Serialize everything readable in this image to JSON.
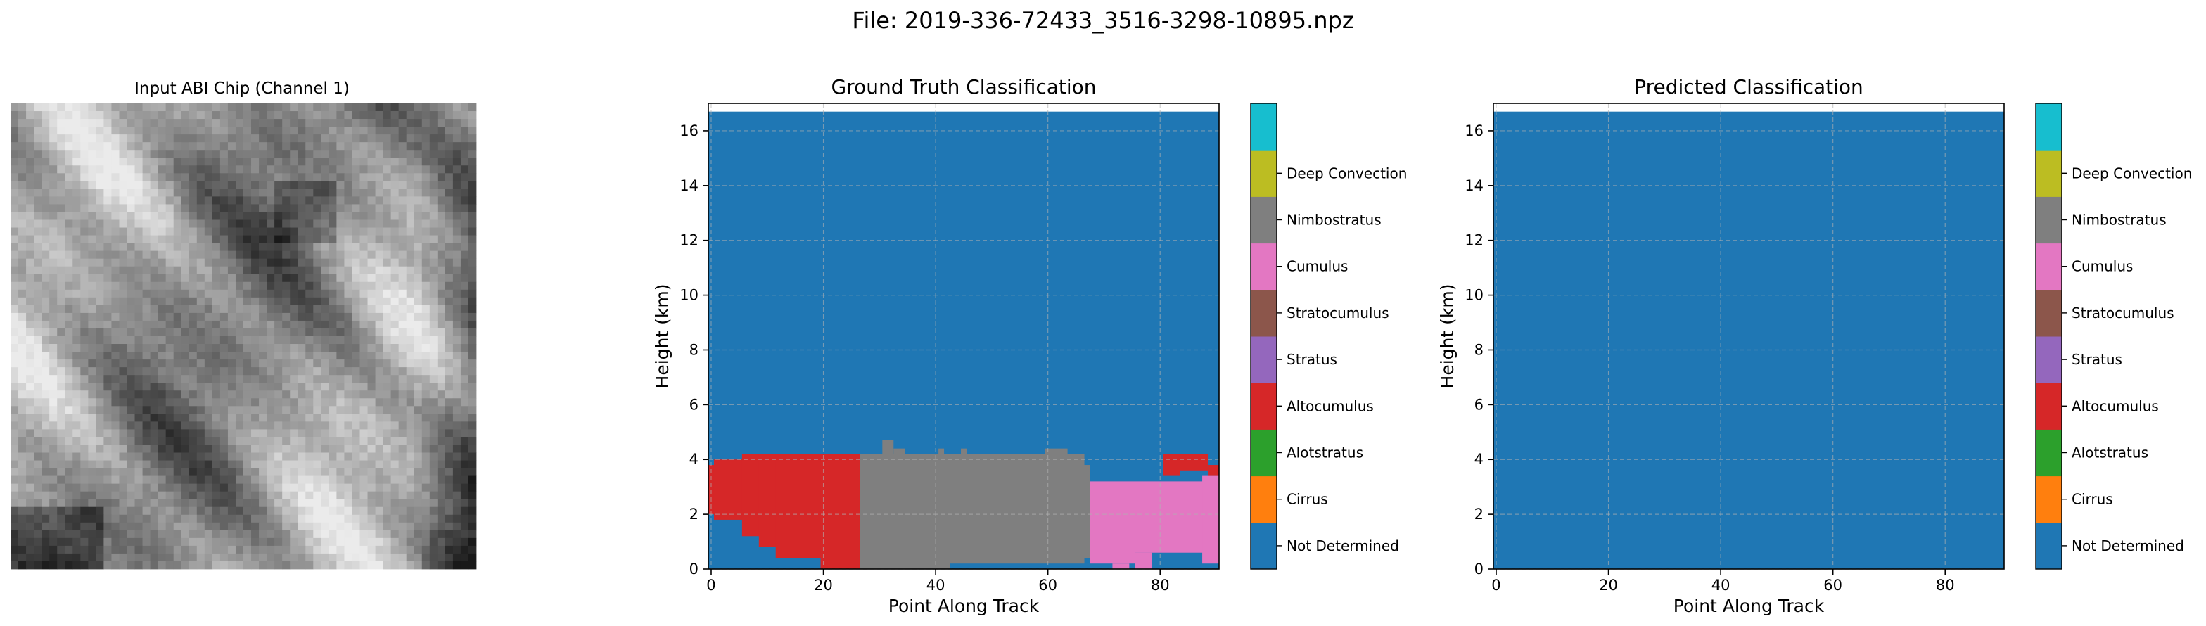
{
  "suptitle": "File: 2019-336-72433_3516-3298-10895.npz",
  "panels": {
    "input": {
      "title": "Input ABI Chip (Channel 1)"
    },
    "ground_truth": {
      "title": "Ground Truth Classification",
      "xlabel": "Point Along Track",
      "ylabel": "Height (km)"
    },
    "predicted": {
      "title": "Predicted Classification",
      "xlabel": "Point Along Track",
      "ylabel": "Height (km)"
    }
  },
  "classes": [
    {
      "name": "Not Determined",
      "color": "#1f77b4"
    },
    {
      "name": "Cirrus",
      "color": "#ff7f0e"
    },
    {
      "name": "Alotstratus",
      "color": "#2ca02c"
    },
    {
      "name": "Altocumulus",
      "color": "#d62728"
    },
    {
      "name": "Stratus",
      "color": "#9467bd"
    },
    {
      "name": "Stratocumulus",
      "color": "#8c564b"
    },
    {
      "name": "Cumulus",
      "color": "#e377c2"
    },
    {
      "name": "Nimbostratus",
      "color": "#7f7f7f"
    },
    {
      "name": "Deep Convection",
      "color": "#bcbd22"
    }
  ],
  "colorbar_colors": [
    "#1f77b4",
    "#ff7f0e",
    "#2ca02c",
    "#d62728",
    "#9467bd",
    "#8c564b",
    "#e377c2",
    "#7f7f7f",
    "#bcbd22",
    "#17becf"
  ],
  "chart_data": [
    {
      "type": "heatmap",
      "title": "Ground Truth Classification",
      "xlabel": "Point Along Track",
      "ylabel": "Height (km)",
      "xlim": [
        -0.5,
        90.5
      ],
      "ylim": [
        0,
        17
      ],
      "data_top": 16.7,
      "xticks": [
        0,
        20,
        40,
        60,
        80
      ],
      "yticks": [
        0,
        2,
        4,
        6,
        8,
        10,
        12,
        14,
        16
      ],
      "grid": true,
      "background_class": "Not Determined",
      "regions": [
        {
          "class": "Altocumulus",
          "x": [
            -0.5,
            26.5
          ],
          "y": [
            2.0,
            3.8
          ]
        },
        {
          "class": "Altocumulus",
          "x": [
            0.5,
            26.5
          ],
          "y": [
            1.8,
            4.0
          ]
        },
        {
          "class": "Altocumulus",
          "x": [
            5.5,
            26.5
          ],
          "y": [
            1.2,
            4.2
          ]
        },
        {
          "class": "Altocumulus",
          "x": [
            8.5,
            26.5
          ],
          "y": [
            0.8,
            4.2
          ]
        },
        {
          "class": "Altocumulus",
          "x": [
            11.5,
            26.5
          ],
          "y": [
            0.4,
            4.2
          ]
        },
        {
          "class": "Altocumulus",
          "x": [
            19.5,
            26.5
          ],
          "y": [
            0.0,
            4.2
          ]
        },
        {
          "class": "Nimbostratus",
          "x": [
            26.5,
            67.5
          ],
          "y": [
            0.4,
            3.8
          ]
        },
        {
          "class": "Nimbostratus",
          "x": [
            26.5,
            66.5
          ],
          "y": [
            0.2,
            4.2
          ]
        },
        {
          "class": "Nimbostratus",
          "x": [
            26.5,
            42.5
          ],
          "y": [
            0.0,
            4.2
          ]
        },
        {
          "class": "Nimbostratus",
          "x": [
            30.5,
            32.5
          ],
          "y": [
            4.2,
            4.7
          ]
        },
        {
          "class": "Nimbostratus",
          "x": [
            32.5,
            34.5
          ],
          "y": [
            4.2,
            4.4
          ]
        },
        {
          "class": "Nimbostratus",
          "x": [
            40.5,
            41.5
          ],
          "y": [
            4.2,
            4.4
          ]
        },
        {
          "class": "Nimbostratus",
          "x": [
            44.5,
            45.5
          ],
          "y": [
            4.2,
            4.4
          ]
        },
        {
          "class": "Nimbostratus",
          "x": [
            59.5,
            63.5
          ],
          "y": [
            4.2,
            4.4
          ]
        },
        {
          "class": "Cumulus",
          "x": [
            67.5,
            75.5
          ],
          "y": [
            0.2,
            3.2
          ]
        },
        {
          "class": "Cumulus",
          "x": [
            71.5,
            74.5
          ],
          "y": [
            0.0,
            0.2
          ]
        },
        {
          "class": "Cumulus",
          "x": [
            75.5,
            90.5
          ],
          "y": [
            0.6,
            3.2
          ]
        },
        {
          "class": "Cumulus",
          "x": [
            75.5,
            78.5
          ],
          "y": [
            0.0,
            0.6
          ]
        },
        {
          "class": "Cumulus",
          "x": [
            75.5,
            87.5
          ],
          "y": [
            0.6,
            2.8
          ]
        },
        {
          "class": "Cumulus",
          "x": [
            87.5,
            90.5
          ],
          "y": [
            0.2,
            3.4
          ]
        },
        {
          "class": "Altocumulus",
          "x": [
            80.5,
            83.5
          ],
          "y": [
            3.4,
            4.2
          ]
        },
        {
          "class": "Altocumulus",
          "x": [
            83.5,
            88.5
          ],
          "y": [
            3.6,
            4.2
          ]
        },
        {
          "class": "Altocumulus",
          "x": [
            88.5,
            90.5
          ],
          "y": [
            3.4,
            3.8
          ]
        }
      ]
    },
    {
      "type": "heatmap",
      "title": "Predicted Classification",
      "xlabel": "Point Along Track",
      "ylabel": "Height (km)",
      "xlim": [
        -0.5,
        90.5
      ],
      "ylim": [
        0,
        17
      ],
      "data_top": 16.7,
      "xticks": [
        0,
        20,
        40,
        60,
        80
      ],
      "yticks": [
        0,
        2,
        4,
        6,
        8,
        10,
        12,
        14,
        16
      ],
      "grid": true,
      "background_class": "Not Determined",
      "regions": []
    }
  ]
}
